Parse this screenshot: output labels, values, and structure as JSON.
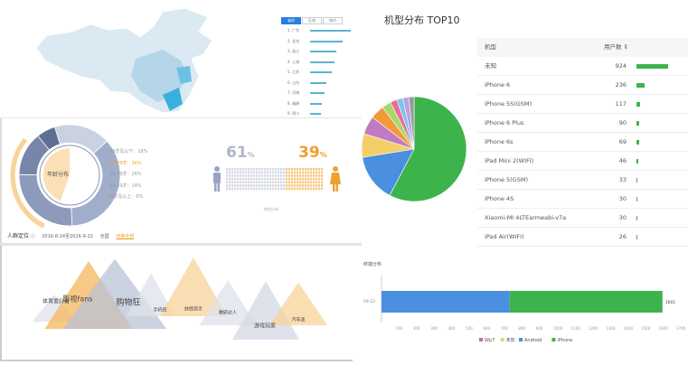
{
  "map": {
    "tabs": [
      "省份",
      "区域",
      "城市"
    ],
    "active_tab": 0,
    "ranking": [
      {
        "rank": "1.",
        "name": "广东",
        "value": 100
      },
      {
        "rank": "2.",
        "name": "北京",
        "value": 79
      },
      {
        "rank": "3.",
        "name": "浙江",
        "value": 64
      },
      {
        "rank": "4.",
        "name": "上海",
        "value": 60
      },
      {
        "rank": "5.",
        "name": "江苏",
        "value": 54
      },
      {
        "rank": "6.",
        "name": "山东",
        "value": 40
      },
      {
        "rank": "7.",
        "name": "河南",
        "value": 36
      },
      {
        "rank": "8.",
        "name": "福建",
        "value": 28
      },
      {
        "rank": "9.",
        "name": "四川",
        "value": 26
      }
    ]
  },
  "age": {
    "center_label": "年龄分布",
    "legend": [
      {
        "label": "19岁及以下：18%",
        "value": 18,
        "highlight": false
      },
      {
        "label": "20-29岁：36%",
        "value": 36,
        "highlight": true
      },
      {
        "label": "30-39岁：26%",
        "value": 26,
        "highlight": false
      },
      {
        "label": "40-49岁：14%",
        "value": 14,
        "highlight": false
      },
      {
        "label": "50岁及以上：6%",
        "value": 6,
        "highlight": false
      }
    ]
  },
  "gender": {
    "male_pct": "61",
    "female_pct": "39",
    "pct_sign": "%",
    "caption": "性别分布",
    "male_color": "#9aa4c4",
    "female_color": "#f0a030"
  },
  "footer": {
    "title": "人群定位",
    "help_icon": "question-circle-icon",
    "date_range": "2016-8-24至2016-9-22",
    "region": "全国",
    "link": "切换全部"
  },
  "interests": [
    {
      "label": "体育爱好者",
      "color": "#dde2ea"
    },
    {
      "label": "影视fans",
      "color": "#f5b55c"
    },
    {
      "label": "购物狂",
      "color": "#b9c3d6"
    },
    {
      "label": "手机控",
      "color": "#dde2ea"
    },
    {
      "label": "财经高手",
      "color": "#f8d39a"
    },
    {
      "label": "教研达人",
      "color": "#dde2ea"
    },
    {
      "label": "游戏玩家",
      "color": "#d3d9e4"
    },
    {
      "label": "汽车迷",
      "color": "#f8d39a"
    }
  ],
  "models": {
    "title": "机型分布 TOP10",
    "col_model": "机型",
    "col_users": "用户数 ⇕",
    "pie_colors": [
      "#3cb44b",
      "#4a8fe0",
      "#f3cf6a",
      "#c07bc0",
      "#f2993a",
      "#a6d96a",
      "#ec6b9a",
      "#7cc7e8",
      "#b7a3e0",
      "#999999"
    ],
    "rows": [
      {
        "model": "未知",
        "users": 924
      },
      {
        "model": "iPhone 6",
        "users": 236
      },
      {
        "model": "iPhone 5S(GSM)",
        "users": 117
      },
      {
        "model": "iPhone 6 Plus",
        "users": 90
      },
      {
        "model": "iPhone 6s",
        "users": 69
      },
      {
        "model": "iPad Mini 2(WIFI)",
        "users": 46
      },
      {
        "model": "iPhone 5(GSM)",
        "users": 33
      },
      {
        "model": "iPhone 4S",
        "users": 30
      },
      {
        "model": "Xiaomi-MI 4LTEarmeabi-v7a",
        "users": 30
      },
      {
        "model": "iPad Air(WIFI)",
        "users": 26
      }
    ]
  },
  "chart_data": {
    "type": "bar",
    "title": "终端分布",
    "categories": [
      "09-22"
    ],
    "stacked": true,
    "orientation": "horizontal",
    "series": [
      {
        "name": "Wp7",
        "values": [
          0
        ],
        "color": "#b06fb0"
      },
      {
        "name": "未知",
        "values": [
          0
        ],
        "color": "#e8d36a"
      },
      {
        "name": "Android",
        "values": [
          730
        ],
        "color": "#4a8fe0"
      },
      {
        "name": "iPhone",
        "values": [
          871
        ],
        "color": "#3cb44b"
      }
    ],
    "total_label": "1601",
    "xlim": [
      0,
      1700
    ],
    "xticks": [
      "100",
      "200",
      "300",
      "400",
      "500",
      "600",
      "700",
      "800",
      "900",
      "1000",
      "1100",
      "1200",
      "1300",
      "1400",
      "1500",
      "1600",
      "1700"
    ],
    "legend": "bottom"
  }
}
